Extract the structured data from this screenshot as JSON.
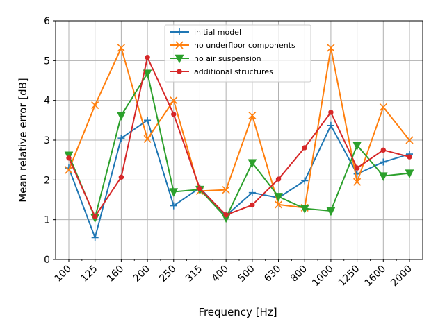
{
  "chart_data": {
    "type": "line",
    "title": "",
    "xlabel": "Frequency [Hz]",
    "ylabel": "Mean relative error [dB]",
    "ylim": [
      0,
      6
    ],
    "yticks": [
      "0",
      "1",
      "2",
      "3",
      "4",
      "5",
      "6"
    ],
    "categories": [
      "100",
      "125",
      "160",
      "200",
      "250",
      "315",
      "400",
      "500",
      "630",
      "800",
      "1000",
      "1250",
      "1600",
      "2000"
    ],
    "grid": true,
    "legend_position": "top-center",
    "series": [
      {
        "name": "initial model",
        "color": "#1f77b4",
        "marker": "plus",
        "values": [
          2.3,
          0.55,
          3.05,
          3.5,
          1.35,
          1.8,
          1.1,
          1.68,
          1.55,
          1.98,
          3.37,
          2.15,
          2.45,
          2.65
        ]
      },
      {
        "name": "no underfloor components",
        "color": "#ff7f0e",
        "marker": "x",
        "values": [
          2.25,
          3.88,
          5.32,
          3.03,
          4.0,
          1.72,
          1.75,
          3.62,
          1.38,
          1.3,
          5.32,
          1.95,
          3.83,
          3.0
        ]
      },
      {
        "name": "no air suspension",
        "color": "#2ca02c",
        "marker": "triangle-down",
        "values": [
          2.62,
          1.05,
          3.62,
          4.68,
          1.7,
          1.76,
          1.05,
          2.43,
          1.58,
          1.28,
          1.22,
          2.87,
          2.1,
          2.17
        ]
      },
      {
        "name": "additional structures",
        "color": "#d62728",
        "marker": "circle",
        "values": [
          2.55,
          1.08,
          2.07,
          5.08,
          3.65,
          1.78,
          1.12,
          1.37,
          2.02,
          2.81,
          3.7,
          2.3,
          2.75,
          2.58
        ]
      }
    ]
  }
}
